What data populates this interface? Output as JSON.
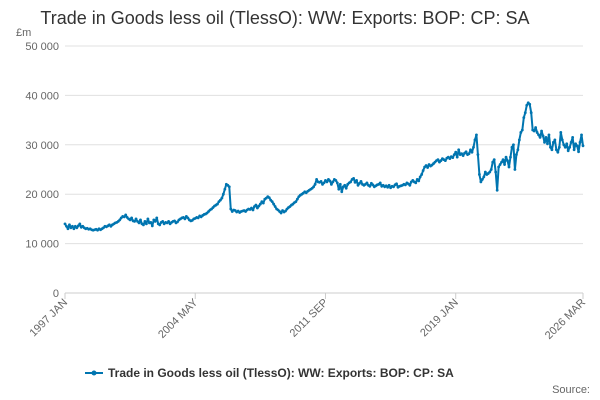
{
  "chart_data": {
    "type": "line",
    "title": "Trade in Goods less oil (TlessO): WW: Exports: BOP: CP: SA",
    "y_unit": "£m",
    "source": "Source:",
    "ylim": [
      0,
      50000
    ],
    "yticks": [
      0,
      {
        "value": 10000,
        "label": "10 000"
      },
      {
        "value": 20000,
        "label": "20 000"
      },
      {
        "value": 30000,
        "label": "30 000"
      },
      {
        "value": 40000,
        "label": "40 000"
      },
      {
        "value": 50000,
        "label": "50 000"
      }
    ],
    "grid": true,
    "legend": "bottom",
    "categories": [
      "1997 JAN",
      null,
      null,
      null,
      null,
      null,
      null,
      null,
      null,
      null,
      null,
      null,
      null,
      null,
      null,
      null,
      null,
      null,
      null,
      null,
      null,
      null,
      null,
      null,
      null,
      null,
      null,
      null,
      null,
      null,
      null,
      null,
      null,
      null,
      null,
      null,
      null,
      null,
      null,
      null,
      null,
      null,
      null,
      null,
      null,
      null,
      null,
      null,
      null,
      null,
      null,
      null,
      null,
      null,
      null,
      null,
      null,
      null,
      null,
      null,
      null,
      null,
      null,
      null,
      null,
      null,
      null,
      null,
      null,
      null,
      null,
      null,
      null,
      null,
      null,
      null,
      null,
      null,
      null,
      null,
      null,
      null,
      null,
      null,
      null,
      null,
      null,
      null,
      "2004 MAY",
      null,
      null,
      null,
      null,
      null,
      null,
      null,
      null,
      null,
      null,
      null,
      null,
      null,
      null,
      null,
      null,
      null,
      null,
      null,
      null,
      null,
      null,
      null,
      null,
      null,
      null,
      null,
      null,
      null,
      null,
      null,
      null,
      null,
      null,
      null,
      null,
      null,
      null,
      null,
      null,
      null,
      null,
      null,
      null,
      null,
      null,
      null,
      null,
      null,
      null,
      null,
      null,
      null,
      null,
      null,
      null,
      null,
      null,
      null,
      null,
      null,
      null,
      null,
      null,
      null,
      null,
      null,
      null,
      null,
      null,
      null,
      null,
      null,
      null,
      null,
      null,
      null,
      null,
      null,
      null,
      null,
      null,
      null,
      null,
      null,
      null,
      null,
      "2011 SEP",
      null,
      null,
      null,
      null,
      null,
      null,
      null,
      null,
      null,
      null,
      null,
      null,
      null,
      null,
      null,
      null,
      null,
      null,
      null,
      null,
      null,
      null,
      null,
      null,
      null,
      null,
      null,
      null,
      null,
      null,
      null,
      null,
      null,
      null,
      null,
      null,
      null,
      null,
      null,
      null,
      null,
      null,
      null,
      null,
      null,
      null,
      null,
      null,
      null,
      null,
      null,
      null,
      null,
      null,
      null,
      null,
      null,
      null,
      null,
      null,
      null,
      null,
      null,
      null,
      null,
      null,
      null,
      null,
      null,
      null,
      null,
      null,
      null,
      null,
      null,
      null,
      null,
      null,
      null,
      null,
      null,
      null,
      null,
      null,
      null,
      null,
      null,
      "2019 JAN",
      null,
      null,
      null,
      null,
      null,
      null,
      null,
      null,
      null,
      null,
      null,
      null,
      null,
      null,
      null,
      null,
      null,
      null,
      null,
      null,
      null,
      null,
      null,
      null,
      null,
      null,
      null,
      null,
      null,
      null,
      null,
      null,
      null,
      null,
      null,
      null,
      null,
      null,
      null,
      null,
      null,
      null,
      null,
      null,
      null,
      null,
      null,
      null,
      null,
      null,
      null,
      null,
      null,
      null,
      null,
      null,
      null,
      null,
      null,
      null,
      null,
      null,
      null,
      null,
      null,
      null,
      null,
      null,
      null,
      null,
      null,
      null,
      null,
      null,
      null,
      null,
      null,
      null,
      null,
      null,
      null,
      null,
      null,
      null,
      null,
      "2026 MAR"
    ],
    "series": [
      {
        "name": "Trade in Goods less oil (TlessO): WW: Exports: BOP: CP: SA",
        "color": "#0075b0",
        "values": [
          14000,
          13500,
          13000,
          13800,
          13200,
          13500,
          13000,
          13500,
          13200,
          13600,
          14000,
          13300,
          13500,
          13200,
          13000,
          13100,
          12900,
          13000,
          12800,
          12700,
          12800,
          12900,
          12700,
          13000,
          12800,
          13000,
          13200,
          13500,
          13400,
          13600,
          13800,
          13500,
          13800,
          14000,
          14200,
          14300,
          14500,
          14800,
          15200,
          15500,
          15400,
          15800,
          15300,
          15000,
          14800,
          15200,
          14600,
          14500,
          15000,
          14500,
          14200,
          14800,
          14000,
          13800,
          14500,
          14000,
          15000,
          14200,
          14300,
          13600,
          14800,
          14500,
          15200,
          14000,
          13800,
          14300,
          14500,
          14000,
          14300,
          14200,
          14500,
          14000,
          14300,
          14500,
          14600,
          14200,
          14400,
          14800,
          15000,
          15200,
          15300,
          15000,
          15500,
          15200,
          14800,
          14600,
          14700,
          15000,
          15100,
          15300,
          15200,
          15600,
          15400,
          15700,
          15900,
          16000,
          16200,
          16500,
          16800,
          17000,
          17300,
          17600,
          17800,
          18000,
          18500,
          18800,
          19200,
          20000,
          21000,
          22000,
          21800,
          21500,
          17000,
          16500,
          16800,
          16700,
          16400,
          16600,
          16300,
          16500,
          16600,
          16700,
          16500,
          16800,
          17000,
          16900,
          17200,
          16800,
          17500,
          17800,
          17200,
          17600,
          18000,
          18500,
          18200,
          19000,
          19200,
          19500,
          19300,
          18800,
          18500,
          18000,
          17500,
          17000,
          16800,
          16500,
          16200,
          16700,
          16400,
          16600,
          17000,
          17300,
          17500,
          17800,
          18000,
          18300,
          18500,
          19000,
          19500,
          19800,
          20000,
          20200,
          20500,
          20300,
          20600,
          20800,
          21000,
          21200,
          21500,
          22000,
          23000,
          22500,
          22400,
          22600,
          22000,
          22300,
          22800,
          22500,
          23000,
          22700,
          22000,
          22500,
          23000,
          22800,
          22300,
          21000,
          22000,
          20500,
          21500,
          21800,
          21200,
          22000,
          22300,
          22500,
          23000,
          23200,
          22400,
          22800,
          21800,
          22200,
          22600,
          22000,
          21800,
          22000,
          22300,
          21800,
          21600,
          22200,
          21900,
          21500,
          21700,
          21900,
          22000,
          22300,
          21600,
          21800,
          21500,
          21700,
          21400,
          21800,
          21300,
          21600,
          21500,
          21900,
          22100,
          21400,
          21600,
          21700,
          21800,
          22000,
          21900,
          22300,
          22100,
          21800,
          22500,
          22800,
          22500,
          22300,
          23000,
          22700,
          23500,
          24000,
          24800,
          25500,
          25800,
          25400,
          26000,
          25700,
          25900,
          26200,
          26500,
          26800,
          27000,
          26500,
          26800,
          27200,
          27000,
          26800,
          27300,
          27500,
          27200,
          27600,
          27400,
          28000,
          28500,
          27500,
          29000,
          28000,
          28200,
          27800,
          28300,
          28600,
          28000,
          28200,
          29000,
          28500,
          29500,
          31000,
          32000,
          28000,
          24000,
          22500,
          23000,
          23500,
          24500,
          24000,
          24200,
          24500,
          25000,
          26500,
          27000,
          24500,
          20800,
          25500,
          26000,
          26500,
          27000,
          26000,
          27500,
          26800,
          25500,
          27500,
          29500,
          30000,
          25000,
          28000,
          29000,
          31000,
          32500,
          33000,
          35500,
          36500,
          38000,
          38500,
          38200,
          36500,
          33000,
          32800,
          33500,
          32500,
          32000,
          31500,
          32800,
          31800,
          30500,
          31500,
          30200,
          32000,
          29500,
          29000,
          30500,
          31000,
          29000,
          28500,
          29500,
          32500,
          31000,
          30000,
          29500,
          30200,
          28800,
          29500,
          30500,
          31500,
          29000,
          30200,
          29800,
          28600,
          30500,
          32000,
          29800
        ]
      }
    ]
  }
}
